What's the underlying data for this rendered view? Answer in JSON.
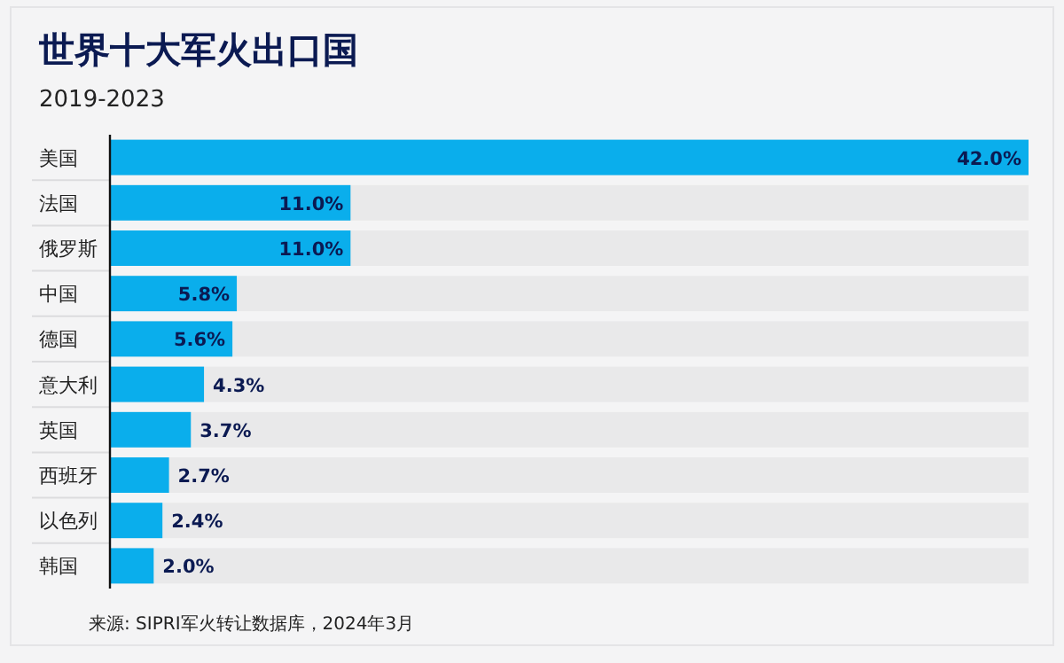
{
  "chart_data": {
    "type": "bar",
    "orientation": "horizontal",
    "title": "世界十大军火出口国",
    "subtitle": "2019-2023",
    "categories": [
      "美国",
      "法国",
      "俄罗斯",
      "中国",
      "德国",
      "意大利",
      "英国",
      "西班牙",
      "以色列",
      "韩国"
    ],
    "values": [
      42.0,
      11.0,
      11.0,
      5.8,
      5.6,
      4.3,
      3.7,
      2.7,
      2.4,
      2.0
    ],
    "value_labels": [
      "42.0%",
      "11.0%",
      "11.0%",
      "5.8%",
      "5.6%",
      "4.3%",
      "3.7%",
      "2.7%",
      "2.4%",
      "2.0%"
    ],
    "color": "#0aaeec",
    "annotations": [
      "来源: SIPRI军火转让数据库，2024年3月"
    ]
  }
}
